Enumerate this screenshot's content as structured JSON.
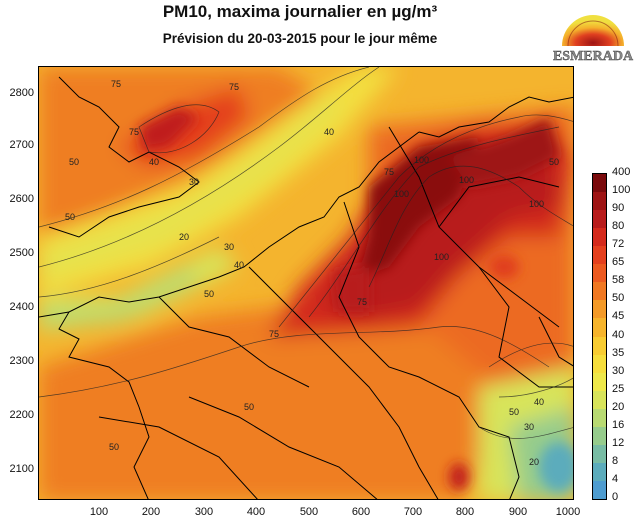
{
  "title": "PM10, maxima journalier en µg/m³",
  "subtitle": "Prévision du 20-03-2015 pour le jour même",
  "logo_text": "ESMERADA",
  "map": {
    "x_ticks": [
      "100",
      "200",
      "300",
      "400",
      "500",
      "600",
      "700",
      "800",
      "900",
      "1000"
    ],
    "y_ticks": [
      "2800",
      "2700",
      "2600",
      "2500",
      "2400",
      "2300",
      "2200",
      "2100"
    ],
    "contour_labels": [
      "75",
      "75",
      "50",
      "40",
      "50",
      "30",
      "40",
      "30",
      "20",
      "40",
      "50",
      "75",
      "100",
      "75",
      "75",
      "100",
      "100",
      "100",
      "100",
      "75",
      "50",
      "40",
      "50",
      "50",
      "30",
      "20",
      "50"
    ],
    "x_range": [
      0,
      1000
    ],
    "y_range": [
      2045,
      2865
    ]
  },
  "colorbar": {
    "levels": [
      "400",
      "100",
      "90",
      "80",
      "72",
      "65",
      "58",
      "50",
      "45",
      "40",
      "35",
      "30",
      "25",
      "20",
      "16",
      "12",
      "8",
      "4",
      "0"
    ],
    "colors": [
      "#7a0a0c",
      "#9e1414",
      "#b81c1c",
      "#d42a1c",
      "#e4401e",
      "#ec5a20",
      "#f07822",
      "#f49a28",
      "#f6b42c",
      "#f8cc32",
      "#f6de3c",
      "#eee84a",
      "#d8e45a",
      "#b8da72",
      "#96cc8c",
      "#78bca4",
      "#5cacbc",
      "#4e9cd0"
    ]
  },
  "colors": {
    "extreme": "#8a0f10",
    "very_high": "#c01f1c",
    "high": "#e03e1e",
    "medium": "#ef7e22",
    "moderate": "#f6b02c",
    "low": "#f3df3f",
    "very_low": "#b9da73",
    "clean": "#5cacbc"
  }
}
